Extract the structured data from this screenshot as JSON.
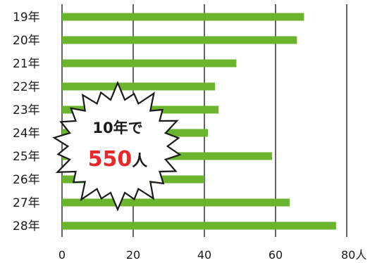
{
  "chart_data": {
    "type": "bar",
    "orientation": "horizontal",
    "categories": [
      "19年",
      "20年",
      "21年",
      "22年",
      "23年",
      "24年",
      "25年",
      "26年",
      "27年",
      "28年"
    ],
    "values": [
      68,
      66,
      49,
      43,
      44,
      41,
      59,
      40,
      64,
      77
    ],
    "xlim": [
      0,
      80
    ],
    "x_ticks": [
      "0",
      "20",
      "40",
      "60",
      "80"
    ],
    "x_unit": "人",
    "grid": true,
    "bar_color": "#6ab42e"
  },
  "callout": {
    "line1": "10年で",
    "number": "550",
    "unit": "人",
    "number_color": "#e8282a"
  }
}
